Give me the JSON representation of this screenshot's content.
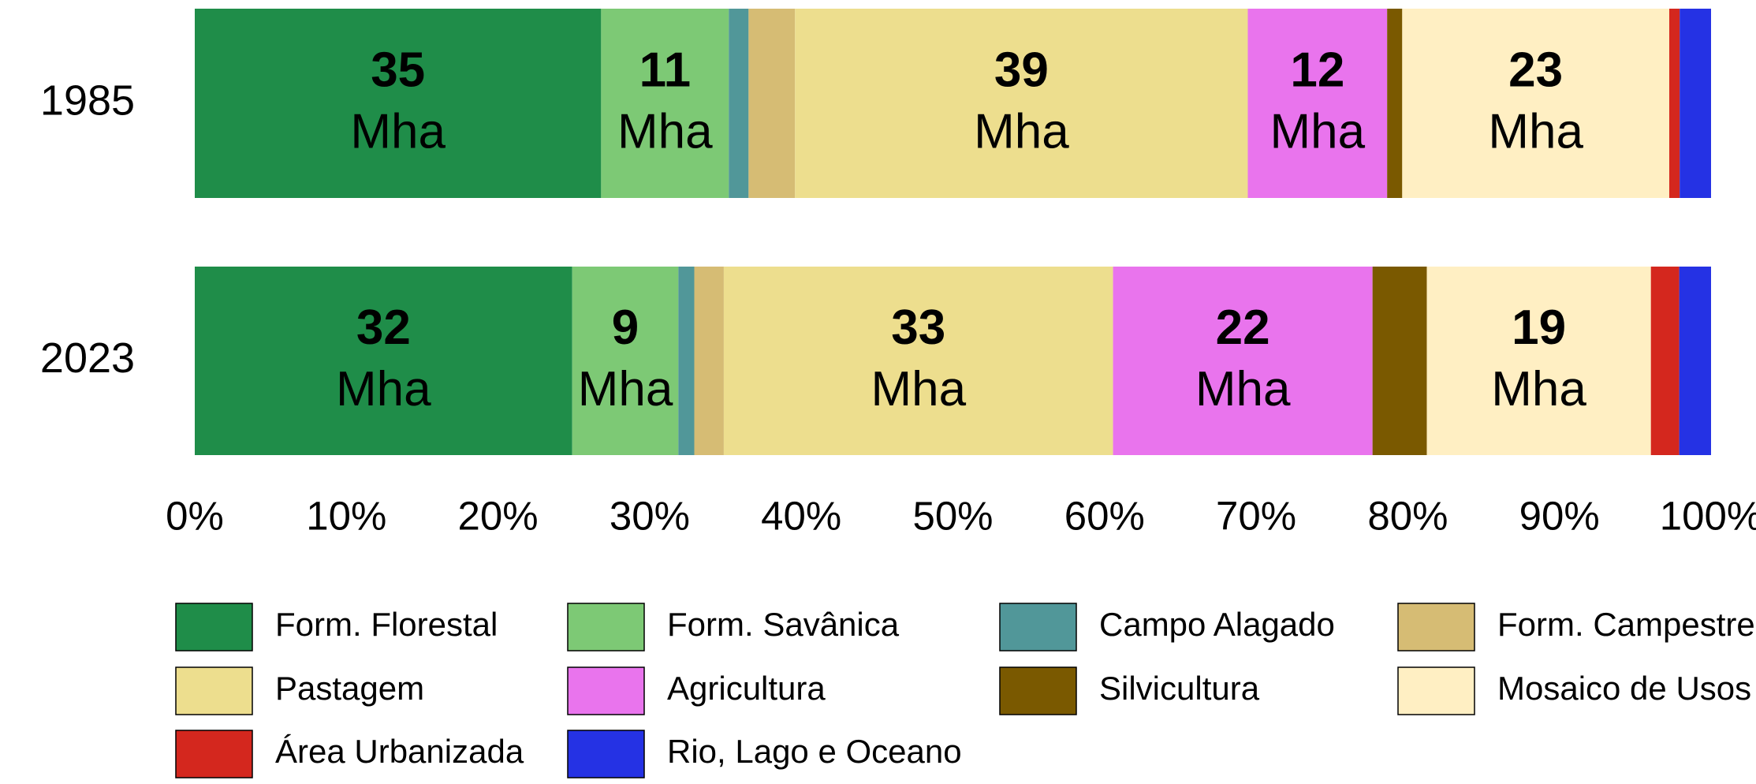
{
  "chart_data": {
    "type": "bar",
    "orientation": "horizontal",
    "stacked": "percent",
    "categories": [
      "1985",
      "2023"
    ],
    "unit": "Mha",
    "xlim": [
      0,
      100
    ],
    "xticks": [
      {
        "value": 0,
        "label": "0%"
      },
      {
        "value": 10,
        "label": "10%"
      },
      {
        "value": 20,
        "label": "20%"
      },
      {
        "value": 30,
        "label": "30%"
      },
      {
        "value": 40,
        "label": "40%"
      },
      {
        "value": 50,
        "label": "50%"
      },
      {
        "value": 60,
        "label": "60%"
      },
      {
        "value": 70,
        "label": "70%"
      },
      {
        "value": 80,
        "label": "80%"
      },
      {
        "value": 90,
        "label": "90%"
      },
      {
        "value": 100,
        "label": "100%"
      }
    ],
    "legend": "bottom",
    "series": [
      {
        "name": "Form. Florestal",
        "color": "#1f8d49",
        "values": [
          35,
          32
        ],
        "value_labels": [
          "35",
          "32"
        ]
      },
      {
        "name": "Form. Savânica",
        "color": "#7dc975",
        "values": [
          11,
          9
        ],
        "value_labels": [
          "11",
          "9"
        ]
      },
      {
        "name": "Campo Alagado",
        "color": "#519799",
        "values": [
          1.7,
          1.35
        ],
        "value_labels": [
          null,
          null
        ]
      },
      {
        "name": "Form. Campestre",
        "color": "#d6bc74",
        "values": [
          4,
          2.5
        ],
        "value_labels": [
          null,
          null
        ]
      },
      {
        "name": "Pastagem",
        "color": "#edde8e",
        "values": [
          39,
          33
        ],
        "value_labels": [
          "39",
          "33"
        ]
      },
      {
        "name": "Agricultura",
        "color": "#e974ed",
        "values": [
          12,
          22
        ],
        "value_labels": [
          "12",
          "22"
        ]
      },
      {
        "name": "Silvicultura",
        "color": "#7a5900",
        "values": [
          1.3,
          4.6
        ],
        "value_labels": [
          null,
          null
        ]
      },
      {
        "name": "Mosaico de Usos",
        "color": "#ffefc3",
        "values": [
          23,
          19
        ],
        "value_labels": [
          "23",
          "19"
        ]
      },
      {
        "name": "Área Urbanizada",
        "color": "#d4271e",
        "values": [
          0.9,
          2.4
        ],
        "value_labels": [
          null,
          null
        ]
      },
      {
        "name": "Rio, Lago e Oceano",
        "color": "#2532e4",
        "values": [
          2.7,
          2.7
        ],
        "value_labels": [
          null,
          null
        ]
      }
    ]
  }
}
